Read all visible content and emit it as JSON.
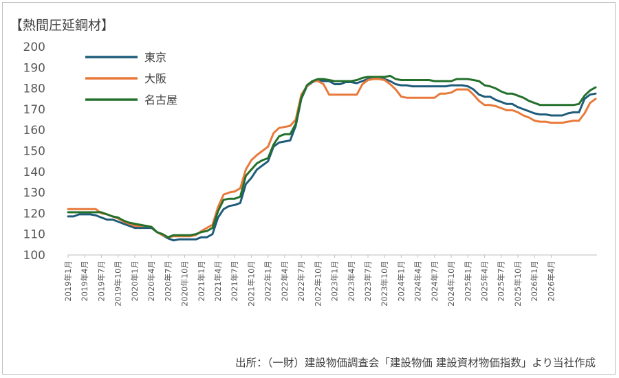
{
  "colors": {
    "tokyo": "#1f5c7a",
    "osaka": "#e8793a",
    "nagoya": "#23702b",
    "axis": "#bfbfbf",
    "text": "#595959"
  },
  "chart_data": {
    "type": "line",
    "title": "【熱間圧延鋼材】",
    "source": "出所：（一財）建設物価調査会「建設物価 建設資材物価指数」より当社作成",
    "ylim": [
      100,
      200
    ],
    "y_ticks": [
      "100",
      "110",
      "120",
      "130",
      "140",
      "150",
      "160",
      "170",
      "180",
      "190",
      "200"
    ],
    "x_tick_labels": [
      "2019年1月",
      "2019年4月",
      "2019年7月",
      "2019年10月",
      "2020年1月",
      "2020年4月",
      "2020年7月",
      "2020年10月",
      "2021年1月",
      "2021年4月",
      "2021年7月",
      "2021年10月",
      "2022年1月",
      "2022年4月",
      "2022年7月",
      "2022年10月",
      "2023年1月",
      "2023年4月",
      "2023年7月",
      "2023年10月",
      "2024年1月",
      "2024年4月",
      "2024年7月",
      "2024年10月",
      "2025年1月",
      "2025年4月",
      "2025年7月",
      "2025年10月",
      "2026年1月",
      "2026年4月"
    ],
    "grid": false,
    "legend_position": "top-left",
    "series": [
      {
        "name": "東京",
        "color": "#1f5c7a",
        "values": [
          118.5,
          118.5,
          119.5,
          119.5,
          119.5,
          119.0,
          118.0,
          117.0,
          117.0,
          116.0,
          115.0,
          114.0,
          113.0,
          113.0,
          113.0,
          113.0,
          111.0,
          109.5,
          108.0,
          107.0,
          107.5,
          107.5,
          107.5,
          107.5,
          108.5,
          108.5,
          110.0,
          118.0,
          122.0,
          123.5,
          124.0,
          125.0,
          134.0,
          137.0,
          141.0,
          143.0,
          145.0,
          152.0,
          154.0,
          154.5,
          155.0,
          162.0,
          175.0,
          181.0,
          183.0,
          184.0,
          183.5,
          183.5,
          182.0,
          182.0,
          183.0,
          183.0,
          182.5,
          183.5,
          184.5,
          184.5,
          184.5,
          184.5,
          183.5,
          182.0,
          181.5,
          181.5,
          181.0,
          181.0,
          181.0,
          181.0,
          181.0,
          181.0,
          181.0,
          181.5,
          181.5,
          181.5,
          181.0,
          179.5,
          177.0,
          176.0,
          176.0,
          174.5,
          173.5,
          172.5,
          172.5,
          171.0,
          170.0,
          169.0,
          168.0,
          167.5,
          167.5,
          167.0,
          167.0,
          167.0,
          168.0,
          168.5,
          168.5,
          175.0,
          177.0,
          177.5
        ]
      },
      {
        "name": "大阪",
        "color": "#e8793a",
        "values": [
          122.0,
          122.0,
          122.0,
          122.0,
          122.0,
          122.0,
          120.0,
          119.5,
          118.5,
          117.5,
          116.0,
          115.0,
          114.0,
          114.0,
          114.0,
          113.5,
          111.0,
          109.5,
          108.5,
          109.0,
          109.0,
          109.0,
          109.0,
          109.5,
          111.5,
          113.0,
          114.5,
          123.0,
          129.0,
          130.0,
          130.5,
          132.0,
          141.0,
          145.5,
          148.0,
          150.0,
          152.0,
          158.5,
          161.0,
          161.5,
          162.0,
          165.0,
          177.0,
          181.0,
          183.5,
          183.5,
          182.0,
          177.0,
          177.0,
          177.0,
          177.0,
          177.0,
          177.0,
          182.0,
          184.0,
          184.5,
          184.5,
          184.0,
          182.0,
          179.5,
          176.0,
          175.5,
          175.5,
          175.5,
          175.5,
          175.5,
          175.5,
          177.5,
          177.5,
          178.0,
          179.5,
          179.5,
          179.5,
          177.0,
          174.0,
          172.0,
          172.0,
          171.5,
          170.5,
          169.5,
          169.5,
          168.5,
          167.0,
          166.0,
          164.5,
          164.0,
          164.0,
          163.5,
          163.5,
          163.5,
          164.0,
          164.5,
          164.5,
          168.0,
          173.0,
          175.0
        ]
      },
      {
        "name": "名古屋",
        "color": "#23702b",
        "values": [
          120.5,
          120.5,
          120.5,
          120.5,
          120.5,
          120.5,
          120.5,
          119.5,
          118.5,
          118.0,
          116.5,
          115.5,
          115.0,
          114.5,
          114.0,
          113.5,
          111.0,
          110.0,
          108.5,
          109.5,
          109.5,
          109.5,
          109.5,
          110.0,
          111.0,
          111.5,
          113.0,
          121.0,
          126.5,
          127.0,
          127.0,
          128.0,
          138.0,
          141.0,
          144.0,
          145.5,
          146.5,
          153.0,
          157.0,
          158.0,
          158.0,
          163.0,
          175.5,
          181.5,
          183.5,
          184.5,
          184.5,
          184.0,
          183.5,
          183.5,
          183.5,
          183.5,
          184.0,
          185.0,
          185.5,
          185.5,
          185.5,
          185.5,
          186.0,
          184.5,
          184.0,
          184.0,
          184.0,
          184.0,
          184.0,
          184.0,
          183.5,
          183.5,
          183.5,
          183.5,
          184.5,
          184.5,
          184.5,
          184.0,
          183.5,
          181.5,
          181.0,
          180.0,
          178.5,
          177.5,
          177.5,
          176.5,
          175.5,
          174.0,
          173.0,
          172.0,
          172.0,
          172.0,
          172.0,
          172.0,
          172.0,
          172.0,
          172.5,
          176.5,
          179.0,
          180.5
        ]
      }
    ]
  }
}
